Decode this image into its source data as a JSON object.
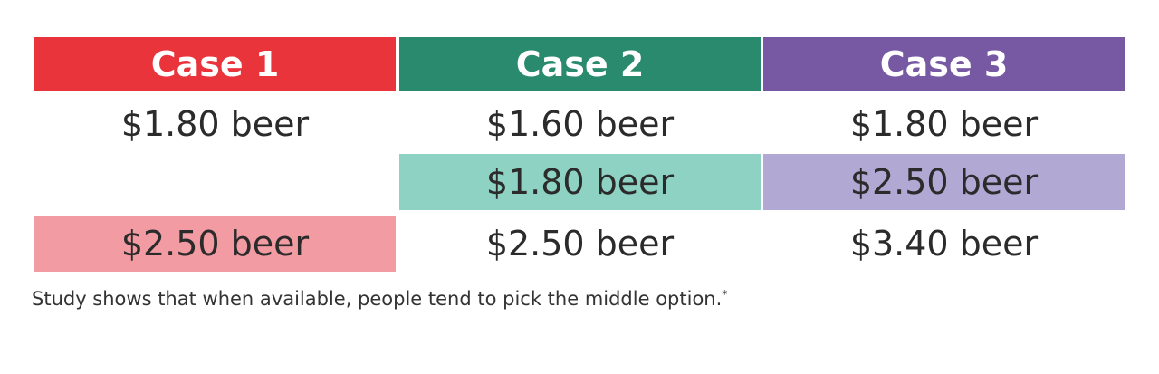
{
  "columns": [
    {
      "title": "Case 1",
      "color": "#E8343A",
      "options": [
        "$1.80 beer",
        "",
        "$2.50 beer"
      ],
      "highlight_color": "#F29BA3",
      "highlight_row": 2
    },
    {
      "title": "Case 2",
      "color": "#2A8A6E",
      "options": [
        "$1.60 beer",
        "$1.80 beer",
        "$2.50 beer"
      ],
      "highlight_color": "#8DD2C3",
      "highlight_row": 1
    },
    {
      "title": "Case 3",
      "color": "#7658A3",
      "options": [
        "$1.80 beer",
        "$2.50 beer",
        "$3.40 beer"
      ],
      "highlight_color": "#B1A8D4",
      "highlight_row": 1
    }
  ],
  "caption": "Study shows that when available, people tend to pick the middle option.",
  "caption_mark": "*"
}
